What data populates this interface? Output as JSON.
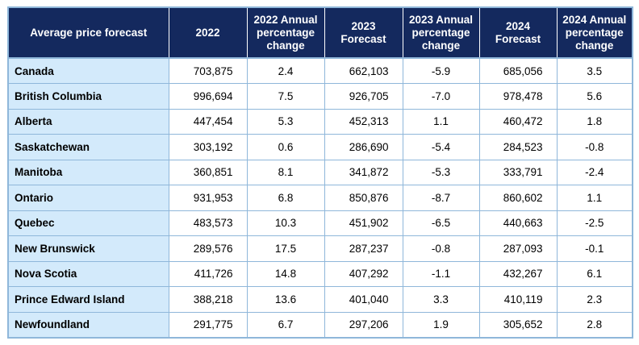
{
  "table": {
    "columns": [
      "Average price forecast",
      "2022",
      "2022 Annual percentage change",
      "2023 Forecast",
      "2023 Annual percentage change",
      "2024 Forecast",
      "2024 Annual percentage change"
    ],
    "rows": [
      {
        "region": "Canada",
        "p2022": "703,875",
        "c2022": "2.4",
        "p2023": "662,103",
        "c2023": "-5.9",
        "p2024": "685,056",
        "c2024": "3.5"
      },
      {
        "region": "British Columbia",
        "p2022": "996,694",
        "c2022": "7.5",
        "p2023": "926,705",
        "c2023": "-7.0",
        "p2024": "978,478",
        "c2024": "5.6"
      },
      {
        "region": "Alberta",
        "p2022": "447,454",
        "c2022": "5.3",
        "p2023": "452,313",
        "c2023": "1.1",
        "p2024": "460,472",
        "c2024": "1.8"
      },
      {
        "region": "Saskatchewan",
        "p2022": "303,192",
        "c2022": "0.6",
        "p2023": "286,690",
        "c2023": "-5.4",
        "p2024": "284,523",
        "c2024": "-0.8"
      },
      {
        "region": "Manitoba",
        "p2022": "360,851",
        "c2022": "8.1",
        "p2023": "341,872",
        "c2023": "-5.3",
        "p2024": "333,791",
        "c2024": "-2.4"
      },
      {
        "region": "Ontario",
        "p2022": "931,953",
        "c2022": "6.8",
        "p2023": "850,876",
        "c2023": "-8.7",
        "p2024": "860,602",
        "c2024": "1.1"
      },
      {
        "region": "Quebec",
        "p2022": "483,573",
        "c2022": "10.3",
        "p2023": "451,902",
        "c2023": "-6.5",
        "p2024": "440,663",
        "c2024": "-2.5"
      },
      {
        "region": "New Brunswick",
        "p2022": "289,576",
        "c2022": "17.5",
        "p2023": "287,237",
        "c2023": "-0.8",
        "p2024": "287,093",
        "c2024": "-0.1"
      },
      {
        "region": "Nova Scotia",
        "p2022": "411,726",
        "c2022": "14.8",
        "p2023": "407,292",
        "c2023": "-1.1",
        "p2024": "432,267",
        "c2024": "6.1"
      },
      {
        "region": "Prince Edward Island",
        "p2022": "388,218",
        "c2022": "13.6",
        "p2023": "401,040",
        "c2023": "3.3",
        "p2024": "410,119",
        "c2024": "2.3"
      },
      {
        "region": "Newfoundland",
        "p2022": "291,775",
        "c2022": "6.7",
        "p2023": "297,206",
        "c2023": "1.9",
        "p2024": "305,652",
        "c2024": "2.8"
      }
    ]
  },
  "colors": {
    "header_bg": "#14295e",
    "header_text": "#ffffff",
    "region_cell_bg": "#d3eafb",
    "grid_border": "#8fb7da"
  }
}
